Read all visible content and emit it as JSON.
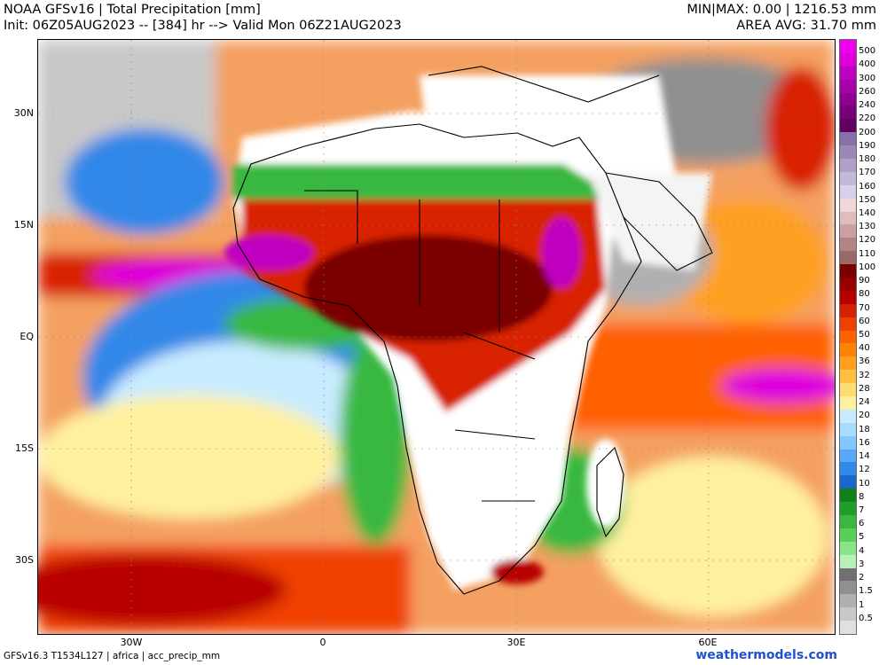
{
  "header": {
    "title": "NOAA GFSv16 | Total Precipitation [mm]",
    "init": "Init: 06Z05AUG2023 -- [384] hr --> Valid Mon 06Z21AUG2023",
    "minmax": "MIN|MAX: 0.00 | 1216.53 mm",
    "area_avg": "AREA AVG: 31.70 mm"
  },
  "axes": {
    "lat_labels": [
      "30N",
      "15N",
      "EQ",
      "15S",
      "30S"
    ],
    "lon_labels": [
      "30W",
      "0",
      "30E",
      "60E"
    ]
  },
  "colorbar": {
    "labels": [
      "500",
      "400",
      "300",
      "260",
      "240",
      "220",
      "200",
      "190",
      "180",
      "170",
      "160",
      "150",
      "140",
      "130",
      "120",
      "110",
      "100",
      "90",
      "80",
      "70",
      "60",
      "50",
      "40",
      "36",
      "32",
      "28",
      "24",
      "20",
      "18",
      "16",
      "14",
      "12",
      "10",
      "8",
      "7",
      "6",
      "5",
      "4",
      "3",
      "2",
      "1.5",
      "1",
      "0.5"
    ],
    "colors": [
      "#ee00ee",
      "#dd00dd",
      "#c000c0",
      "#a800a8",
      "#900090",
      "#780078",
      "#600060",
      "#8870a8",
      "#9c88b8",
      "#b0a0c8",
      "#c4b8d8",
      "#d8d0e6",
      "#f0d8d8",
      "#e0bcbc",
      "#cca0a0",
      "#b48484",
      "#9c6868",
      "#7a0000",
      "#980000",
      "#b80000",
      "#d82000",
      "#f04000",
      "#ff6000",
      "#ff8200",
      "#ffa020",
      "#ffc040",
      "#ffdc70",
      "#fff0a0",
      "#c8ecff",
      "#a8dcff",
      "#80c8ff",
      "#58a8f8",
      "#3088e8",
      "#1868d0",
      "#108018",
      "#209c28",
      "#38b840",
      "#58d058",
      "#88e488",
      "#b8f0b8",
      "#707070",
      "#909090",
      "#b0b0b0",
      "#c8c8c8",
      "#e0e0e0"
    ]
  },
  "footer": {
    "left": "GFSv16.3 T1534L127 | africa | acc_precip_mm",
    "right": "weathermodels.com"
  }
}
